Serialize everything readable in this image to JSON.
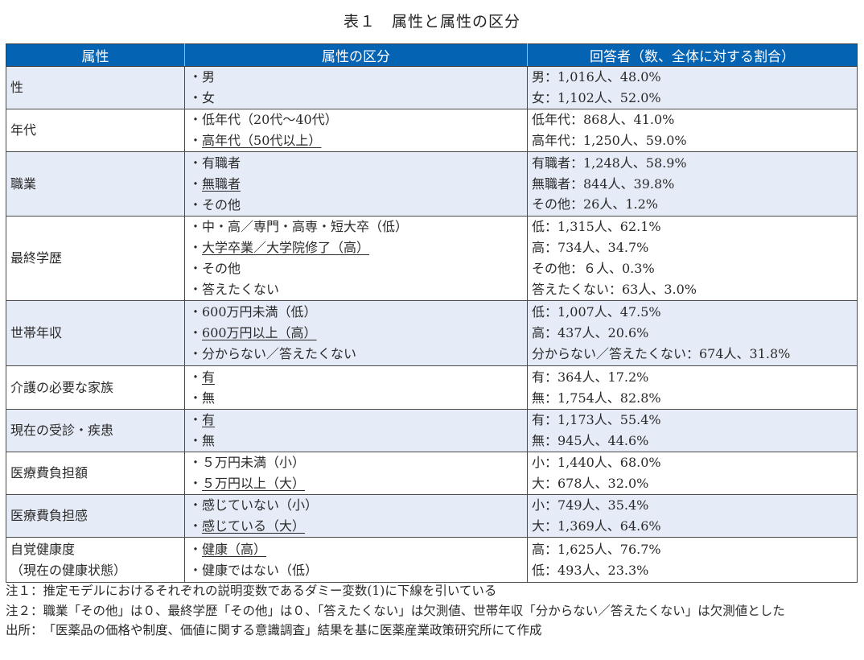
{
  "title": "表１　属性と属性の区分",
  "table": {
    "header_bg": "#0563b4",
    "row_shade": "#e6ecf7",
    "columns": [
      "属性",
      "属性の区分",
      "回答者（数、全体に対する割合）"
    ],
    "rows": [
      {
        "attribute": [
          "性"
        ],
        "shaded": true,
        "categories": [
          {
            "text": "・男",
            "underline": false
          },
          {
            "text": "・女",
            "underline": false
          }
        ],
        "respondents": [
          "男：1,016人、48.0%",
          "女：1,102人、52.0%"
        ]
      },
      {
        "attribute": [
          "年代"
        ],
        "shaded": false,
        "categories": [
          {
            "text": "・低年代（20代～40代）",
            "underline": false
          },
          {
            "text": "・高年代（50代以上）",
            "underline": true
          }
        ],
        "respondents": [
          "低年代：868人、41.0%",
          "高年代：1,250人、59.0%"
        ]
      },
      {
        "attribute": [
          "職業"
        ],
        "shaded": true,
        "categories": [
          {
            "text": "・有職者",
            "underline": false
          },
          {
            "text": "・無職者",
            "underline": true
          },
          {
            "text": "・その他",
            "underline": false
          }
        ],
        "respondents": [
          "有職者：1,248人、58.9%",
          "無職者：844人、39.8%",
          "その他：26人、1.2%"
        ]
      },
      {
        "attribute": [
          "最終学歴"
        ],
        "shaded": false,
        "categories": [
          {
            "text": "・中・高／専門・高専・短大卒（低）",
            "underline": false
          },
          {
            "text": "・大学卒業／大学院修了（高）",
            "underline": true
          },
          {
            "text": "・その他",
            "underline": false
          },
          {
            "text": "・答えたくない",
            "underline": false
          }
        ],
        "respondents": [
          "低：1,315人、62.1%",
          "高：734人、34.7%",
          "その他：６人、0.3%",
          "答えたくない：63人、3.0%"
        ]
      },
      {
        "attribute": [
          "世帯年収"
        ],
        "shaded": true,
        "categories": [
          {
            "text": "・600万円未満（低）",
            "underline": false
          },
          {
            "text": "・600万円以上（高）",
            "underline": true
          },
          {
            "text": "・分からない／答えたくない",
            "underline": false
          }
        ],
        "respondents": [
          "低：1,007人、47.5%",
          "高：437人、20.6%",
          "分からない／答えたくない：674人、31.8%"
        ]
      },
      {
        "attribute": [
          "介護の必要な家族"
        ],
        "shaded": false,
        "categories": [
          {
            "text": "・有",
            "underline": true
          },
          {
            "text": "・無",
            "underline": false
          }
        ],
        "respondents": [
          "有：364人、17.2%",
          "無：1,754人、82.8%"
        ]
      },
      {
        "attribute": [
          "現在の受診・疾患"
        ],
        "shaded": true,
        "categories": [
          {
            "text": "・有",
            "underline": true
          },
          {
            "text": "・無",
            "underline": false
          }
        ],
        "respondents": [
          "有：1,173人、55.4%",
          "無：945人、44.6%"
        ]
      },
      {
        "attribute": [
          "医療費負担額"
        ],
        "shaded": false,
        "categories": [
          {
            "text": "・５万円未満（小）",
            "underline": false
          },
          {
            "text": "・５万円以上（大）",
            "underline": true
          }
        ],
        "respondents": [
          "小：1,440人、68.0%",
          "大：678人、32.0%"
        ]
      },
      {
        "attribute": [
          "医療費負担感"
        ],
        "shaded": true,
        "categories": [
          {
            "text": "・感じていない（小）",
            "underline": false
          },
          {
            "text": "・感じている（大）",
            "underline": true
          }
        ],
        "respondents": [
          "小：749人、35.4%",
          "大：1,369人、64.6%"
        ]
      },
      {
        "attribute": [
          "自覚健康度",
          "（現在の健康状態）"
        ],
        "shaded": false,
        "categories": [
          {
            "text": "・健康（高）",
            "underline": true
          },
          {
            "text": "・健康ではない（低）",
            "underline": false
          }
        ],
        "respondents": [
          "高：1,625人、76.7%",
          "低：493人、23.3%"
        ]
      }
    ]
  },
  "notes": [
    {
      "label": "注１：",
      "text": "推定モデルにおけるそれぞれの説明変数であるダミー変数(1)に下線を引いている"
    },
    {
      "label": "注２：",
      "text": "職業「その他」は０、最終学歴「その他」は０、「答えたくない」は欠測値、世帯年収「分からない／答えたくない」は欠測値とした"
    },
    {
      "label": "出所：",
      "text": "「医薬品の価格や制度、価値に関する意識調査」結果を基に医薬産業政策研究所にて作成"
    }
  ]
}
